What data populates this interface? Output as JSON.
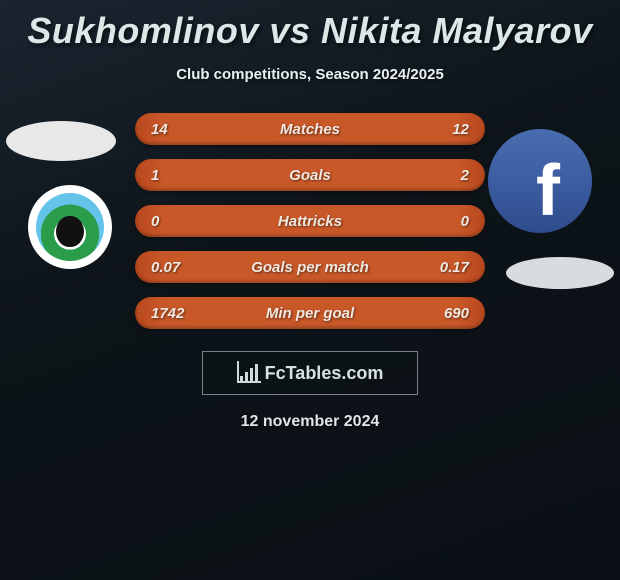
{
  "title": "Sukhomlinov vs Nikita Malyarov",
  "subtitle": "Club competitions, Season 2024/2025",
  "date": "12 november 2024",
  "logo_text": "FcTables.com",
  "stats": {
    "rows": [
      {
        "left": "14",
        "label": "Matches",
        "right": "12"
      },
      {
        "left": "1",
        "label": "Goals",
        "right": "2"
      },
      {
        "left": "0",
        "label": "Hattricks",
        "right": "0"
      },
      {
        "left": "0.07",
        "label": "Goals per match",
        "right": "0.17"
      },
      {
        "left": "1742",
        "label": "Min per goal",
        "right": "690"
      }
    ],
    "row_bg": "#c85828",
    "text_color": "#f0e8e0"
  },
  "colors": {
    "page_bg_top": "#1a2530",
    "page_bg_bottom": "#0a1015",
    "title_color": "#dce8e8"
  }
}
